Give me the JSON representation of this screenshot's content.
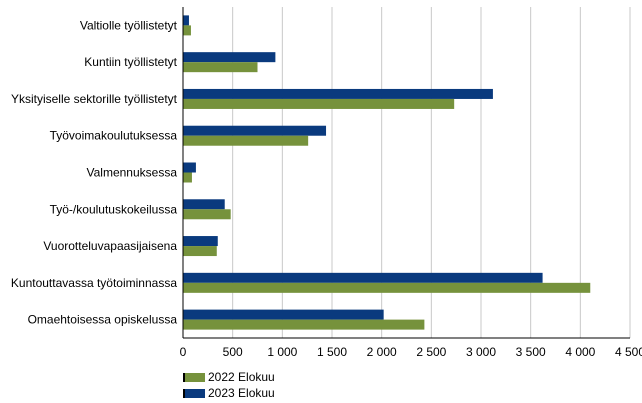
{
  "chart_data": {
    "type": "bar",
    "orientation": "horizontal",
    "categories": [
      "Valtiolle työllistetyt",
      "Kuntiin työllistetyt",
      "Yksityiselle sektorille työllistetyt",
      "Työvoimakoulutuksessa",
      "Valmennuksessa",
      "Työ-/koulutuskokeilussa",
      "Vuorotteluvapaasijaisena",
      "Kuntouttavassa työtoiminnassa",
      "Omaehtoisessa opiskelussa"
    ],
    "series": [
      {
        "name": "2023 Elokuu",
        "color": "#0a3a7e",
        "values": [
          60,
          930,
          3120,
          1440,
          130,
          420,
          350,
          3620,
          2020
        ]
      },
      {
        "name": "2022 Elokuu",
        "color": "#76923c",
        "values": [
          80,
          750,
          2730,
          1260,
          90,
          480,
          340,
          4100,
          2430
        ]
      }
    ],
    "xlim": [
      0,
      4500
    ],
    "ticks": [
      0,
      500,
      1000,
      1500,
      2000,
      2500,
      3000,
      3500,
      4000,
      4500
    ],
    "tick_labels": [
      "0",
      "500",
      "1 000",
      "1 500",
      "2 000",
      "2 500",
      "3 000",
      "3 500",
      "4 000",
      "4 500"
    ],
    "grid": true,
    "legend_position": "bottom-left",
    "legend": [
      {
        "name": "2022 Elokuu",
        "color": "#76923c"
      },
      {
        "name": "2023 Elokuu",
        "color": "#0a3a7e"
      }
    ]
  }
}
